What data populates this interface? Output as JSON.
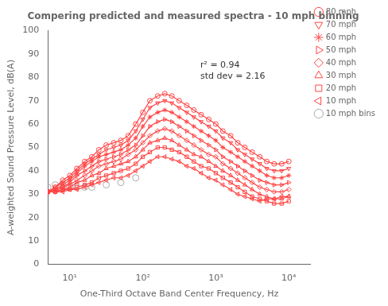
{
  "chart_data": {
    "type": "line",
    "title": "Compering predicted and measured spectra - 10 mph binning",
    "xlabel": "One-Third Octave Band Center Frequency, Hz",
    "ylabel": "A-weighted Sound Pressure Level, dB(A)",
    "annotation": "r² = 0.94\nstd dev = 2.16",
    "log": "x",
    "grid": false,
    "legend": "upper right",
    "xlim": [
      5,
      20000
    ],
    "xticks": [
      {
        "value": 10,
        "label": "10¹"
      },
      {
        "value": 100,
        "label": "10²"
      },
      {
        "value": 1000,
        "label": "10³"
      },
      {
        "value": 10000,
        "label": "10⁴"
      }
    ],
    "ylim": [
      0,
      100
    ],
    "yticks": [
      0,
      10,
      20,
      30,
      40,
      50,
      60,
      70,
      80,
      90,
      100
    ],
    "x": [
      5,
      6.3,
      8,
      10,
      12.5,
      16,
      20,
      25,
      31.5,
      40,
      50,
      63,
      80,
      100,
      125,
      160,
      200,
      250,
      315,
      400,
      500,
      630,
      800,
      1000,
      1250,
      1600,
      2000,
      2500,
      3150,
      4000,
      5000,
      6300,
      8000,
      10000
    ],
    "series": [
      {
        "name": "80 mph",
        "color": "#FF4444",
        "marker": "circle",
        "values": [
          31,
          33,
          36,
          38,
          41,
          44,
          46,
          49,
          51,
          52,
          53,
          55,
          60,
          65,
          70,
          72,
          73,
          72,
          70,
          68,
          66,
          64,
          62,
          60,
          57,
          55,
          52,
          50,
          48,
          46,
          44,
          43,
          43,
          44
        ]
      },
      {
        "name": "70 mph",
        "color": "#FF4444",
        "marker": "triangle_down",
        "values": [
          31,
          33,
          35,
          37,
          40,
          43,
          45,
          47,
          49,
          50,
          51,
          53,
          57,
          62,
          67,
          69,
          70,
          69,
          67,
          65,
          63,
          61,
          59,
          57,
          54,
          52,
          49,
          47,
          45,
          43,
          41,
          40,
          40,
          41
        ]
      },
      {
        "name": "60 mph",
        "color": "#FF4444",
        "marker": "star",
        "values": [
          31,
          32,
          34,
          36,
          39,
          42,
          44,
          46,
          47,
          48,
          49,
          51,
          54,
          59,
          63,
          65,
          66,
          65,
          63,
          61,
          59,
          57,
          55,
          53,
          50,
          48,
          46,
          44,
          42,
          40,
          38,
          37,
          37,
          38
        ]
      },
      {
        "name": "50 mph",
        "color": "#FF4444",
        "marker": "triangle_right",
        "values": [
          31,
          32,
          33,
          35,
          38,
          40,
          42,
          44,
          45,
          46,
          47,
          49,
          51,
          55,
          59,
          61,
          62,
          61,
          59,
          57,
          55,
          53,
          51,
          49,
          46,
          44,
          42,
          40,
          38,
          36,
          35,
          34,
          34,
          35
        ]
      },
      {
        "name": "40 mph",
        "color": "#FF4444",
        "marker": "diamond",
        "values": [
          31,
          31,
          33,
          34,
          36,
          38,
          40,
          42,
          43,
          44,
          45,
          47,
          49,
          52,
          55,
          57,
          58,
          57,
          55,
          53,
          51,
          49,
          47,
          46,
          43,
          41,
          39,
          37,
          35,
          33,
          32,
          31,
          31,
          32
        ]
      },
      {
        "name": "30 mph",
        "color": "#FF4444",
        "marker": "triangle_up",
        "values": [
          31,
          31,
          32,
          33,
          35,
          36,
          38,
          39,
          41,
          42,
          43,
          44,
          46,
          49,
          52,
          53,
          54,
          53,
          51,
          49,
          47,
          46,
          44,
          42,
          40,
          38,
          36,
          34,
          32,
          30,
          29,
          28,
          28,
          29
        ]
      },
      {
        "name": "20 mph",
        "color": "#FF4444",
        "marker": "square",
        "values": [
          31,
          31,
          32,
          32,
          33,
          34,
          35,
          37,
          38,
          39,
          40,
          41,
          43,
          46,
          48,
          50,
          50,
          49,
          48,
          46,
          44,
          42,
          41,
          39,
          37,
          35,
          33,
          31,
          29,
          28,
          27,
          26,
          26,
          27
        ]
      },
      {
        "name": "10 mph",
        "color": "#FF4444",
        "marker": "triangle_left",
        "values": [
          31,
          31,
          31,
          32,
          32,
          33,
          34,
          35,
          36,
          37,
          37,
          38,
          40,
          42,
          44,
          46,
          46,
          45,
          44,
          42,
          41,
          39,
          37,
          36,
          34,
          32,
          30,
          29,
          28,
          27,
          28,
          28,
          29,
          29
        ]
      },
      {
        "name": "10 mph bins",
        "type": "scatter",
        "color": "#AAAAAA",
        "marker": "circle",
        "line_style": "none",
        "x": [
          5,
          6.3,
          8,
          10,
          12.5,
          16,
          20,
          31.5,
          50,
          80
        ],
        "values": [
          33,
          34,
          34,
          33,
          33,
          33,
          33,
          34,
          35,
          37
        ]
      }
    ]
  }
}
